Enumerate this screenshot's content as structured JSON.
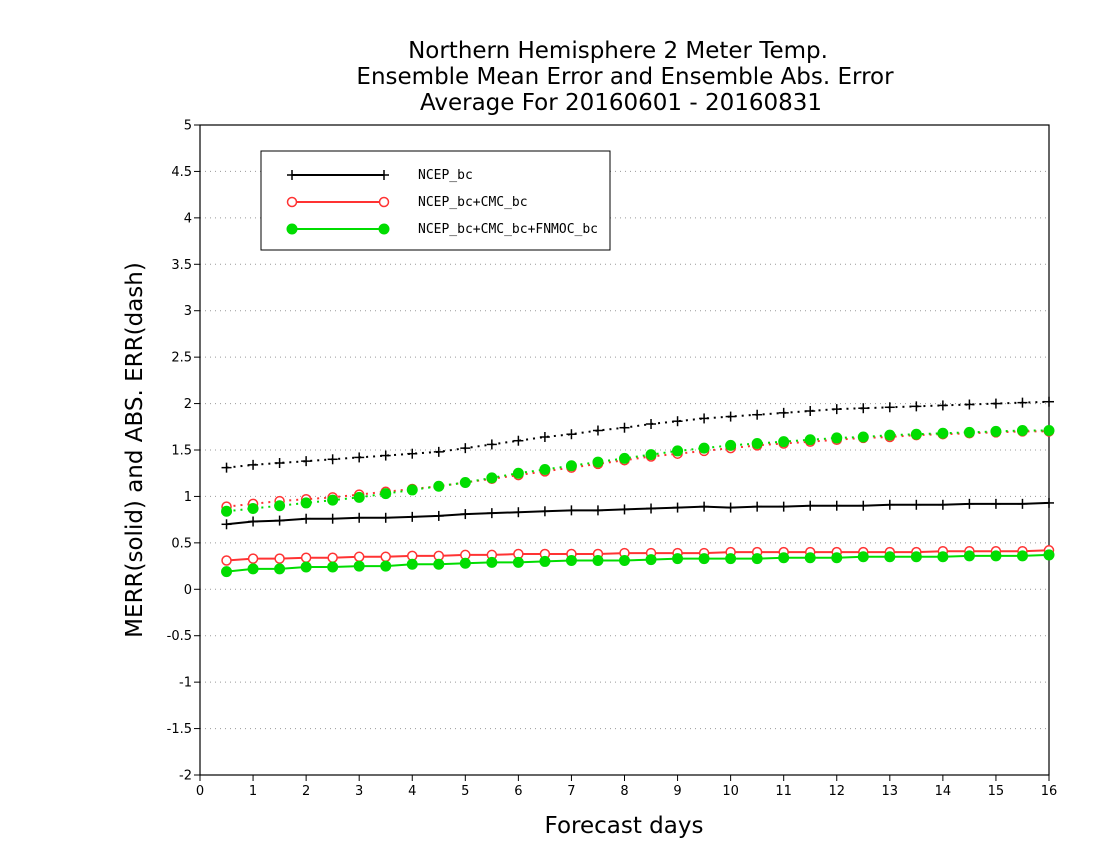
{
  "chart_data": {
    "type": "line",
    "title": [
      "Northern Hemisphere 2 Meter Temp.",
      "Ensemble Mean Error and Ensemble Abs. Error",
      "Average For 20160601 - 20160831"
    ],
    "xlabel": "Forecast days",
    "ylabel": "MERR(solid) and ABS. ERR(dash)",
    "xlim": [
      0,
      16
    ],
    "ylim": [
      -2,
      5
    ],
    "x_ticks": [
      0,
      1,
      2,
      3,
      4,
      5,
      6,
      7,
      8,
      9,
      10,
      11,
      12,
      13,
      14,
      15,
      16
    ],
    "y_ticks": [
      -2,
      -1.5,
      -1,
      -0.5,
      0,
      0.5,
      1,
      1.5,
      2,
      2.5,
      3,
      3.5,
      4,
      4.5,
      5
    ],
    "y_tick_labels": [
      "-2",
      "-1.5",
      "-1",
      "-0.5",
      "0",
      "0.5",
      "1",
      "1.5",
      "2",
      "2.5",
      "3",
      "3.5",
      "4",
      "4.5",
      "5"
    ],
    "grid": "horizontal-dotted",
    "legend_position": "top-left",
    "x": [
      0.5,
      1,
      1.5,
      2,
      2.5,
      3,
      3.5,
      4,
      4.5,
      5,
      5.5,
      6,
      6.5,
      7,
      7.5,
      8,
      8.5,
      9,
      9.5,
      10,
      10.5,
      11,
      11.5,
      12,
      12.5,
      13,
      13.5,
      14,
      14.5,
      15,
      15.5,
      16
    ],
    "series": [
      {
        "name": "NCEP_bc",
        "color": "#000000",
        "marker": "plus",
        "merr": [
          0.7,
          0.73,
          0.74,
          0.76,
          0.76,
          0.77,
          0.77,
          0.78,
          0.79,
          0.81,
          0.82,
          0.83,
          0.84,
          0.85,
          0.85,
          0.86,
          0.87,
          0.88,
          0.89,
          0.88,
          0.89,
          0.89,
          0.9,
          0.9,
          0.9,
          0.91,
          0.91,
          0.91,
          0.92,
          0.92,
          0.92,
          0.93
        ],
        "abs_err": [
          1.31,
          1.34,
          1.36,
          1.38,
          1.4,
          1.42,
          1.44,
          1.46,
          1.48,
          1.52,
          1.56,
          1.6,
          1.64,
          1.67,
          1.71,
          1.74,
          1.78,
          1.81,
          1.84,
          1.86,
          1.88,
          1.9,
          1.92,
          1.94,
          1.95,
          1.96,
          1.97,
          1.98,
          1.99,
          2.0,
          2.01,
          2.02
        ]
      },
      {
        "name": "NCEP_bc+CMC_bc",
        "color": "#ff3333",
        "marker": "open-circle",
        "merr": [
          0.31,
          0.33,
          0.33,
          0.34,
          0.34,
          0.35,
          0.35,
          0.36,
          0.36,
          0.37,
          0.37,
          0.38,
          0.38,
          0.38,
          0.38,
          0.39,
          0.39,
          0.39,
          0.39,
          0.4,
          0.4,
          0.4,
          0.4,
          0.4,
          0.4,
          0.4,
          0.4,
          0.41,
          0.41,
          0.41,
          0.41,
          0.42
        ],
        "abs_err": [
          0.89,
          0.92,
          0.95,
          0.97,
          0.99,
          1.02,
          1.05,
          1.08,
          1.11,
          1.15,
          1.19,
          1.23,
          1.27,
          1.31,
          1.35,
          1.39,
          1.43,
          1.46,
          1.49,
          1.52,
          1.55,
          1.57,
          1.59,
          1.61,
          1.63,
          1.64,
          1.66,
          1.67,
          1.68,
          1.69,
          1.7,
          1.7
        ]
      },
      {
        "name": "NCEP_bc+CMC_bc+FNMOC_bc",
        "color": "#00dd00",
        "marker": "filled-circle",
        "merr": [
          0.19,
          0.22,
          0.22,
          0.24,
          0.24,
          0.25,
          0.25,
          0.27,
          0.27,
          0.28,
          0.29,
          0.29,
          0.3,
          0.31,
          0.31,
          0.31,
          0.32,
          0.33,
          0.33,
          0.33,
          0.33,
          0.34,
          0.34,
          0.34,
          0.35,
          0.35,
          0.35,
          0.35,
          0.36,
          0.36,
          0.36,
          0.37
        ],
        "abs_err": [
          0.84,
          0.87,
          0.9,
          0.93,
          0.96,
          0.99,
          1.03,
          1.07,
          1.11,
          1.15,
          1.2,
          1.25,
          1.29,
          1.33,
          1.37,
          1.41,
          1.45,
          1.49,
          1.52,
          1.55,
          1.57,
          1.59,
          1.61,
          1.63,
          1.64,
          1.66,
          1.67,
          1.68,
          1.69,
          1.7,
          1.71,
          1.71
        ]
      }
    ]
  }
}
